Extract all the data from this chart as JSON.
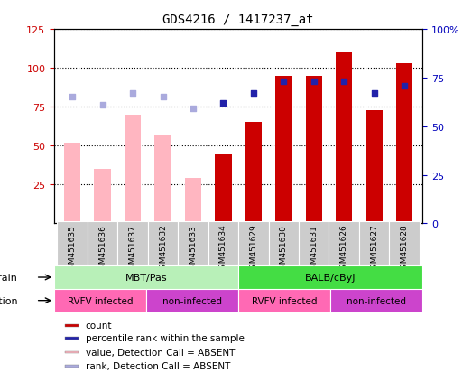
{
  "title": "GDS4216 / 1417237_at",
  "samples": [
    "GSM451635",
    "GSM451636",
    "GSM451637",
    "GSM451632",
    "GSM451633",
    "GSM451634",
    "GSM451629",
    "GSM451630",
    "GSM451631",
    "GSM451626",
    "GSM451627",
    "GSM451628"
  ],
  "count_values": [
    null,
    null,
    null,
    null,
    null,
    45,
    65,
    95,
    95,
    110,
    73,
    103
  ],
  "count_absent": [
    52,
    35,
    70,
    57,
    29,
    null,
    null,
    null,
    null,
    null,
    null,
    null
  ],
  "rank_present": [
    null,
    null,
    null,
    null,
    null,
    62,
    67,
    73,
    73,
    73,
    67,
    71
  ],
  "rank_absent": [
    65,
    61,
    67,
    65,
    59,
    null,
    null,
    null,
    null,
    null,
    null,
    null
  ],
  "strain_groups": [
    {
      "label": "MBT/Pas",
      "start": 0,
      "end": 6,
      "color": "#B8F0B8"
    },
    {
      "label": "BALB/cByJ",
      "start": 6,
      "end": 12,
      "color": "#44DD44"
    }
  ],
  "infection_groups": [
    {
      "label": "RVFV infected",
      "start": 0,
      "end": 3,
      "color": "#FF69B4"
    },
    {
      "label": "non-infected",
      "start": 3,
      "end": 6,
      "color": "#CC44CC"
    },
    {
      "label": "RVFV infected",
      "start": 6,
      "end": 9,
      "color": "#FF69B4"
    },
    {
      "label": "non-infected",
      "start": 9,
      "end": 12,
      "color": "#CC44CC"
    }
  ],
  "ylim_left": [
    0,
    125
  ],
  "ylim_right": [
    0,
    100
  ],
  "yticks_left": [
    25,
    50,
    75,
    100,
    125
  ],
  "yticks_right": [
    0,
    25,
    50,
    75,
    100
  ],
  "color_count_present": "#CC0000",
  "color_count_absent": "#FFB6C1",
  "color_rank_present": "#2222AA",
  "color_rank_absent": "#AAAADD",
  "legend_items": [
    {
      "label": "count",
      "color": "#CC0000"
    },
    {
      "label": "percentile rank within the sample",
      "color": "#2222AA"
    },
    {
      "label": "value, Detection Call = ABSENT",
      "color": "#FFB6C1"
    },
    {
      "label": "rank, Detection Call = ABSENT",
      "color": "#AAAADD"
    }
  ],
  "bar_width": 0.55,
  "dot_size": 25,
  "rank_scale_factor": 1.25
}
